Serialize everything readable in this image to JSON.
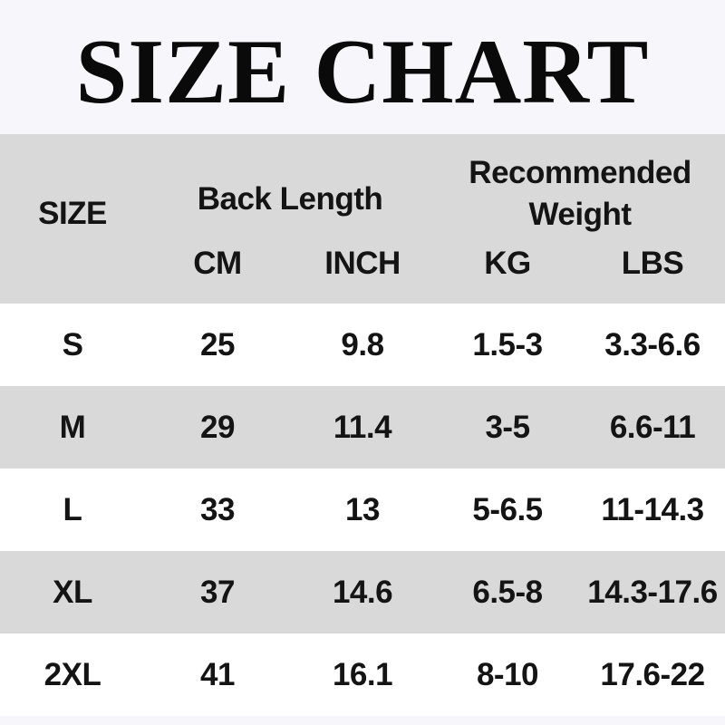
{
  "title": "SIZE CHART",
  "colors": {
    "page_background": "#f6f6fb",
    "header_band": "#d9d9d9",
    "row_stripe": "#d9d9d9",
    "row_plain": "#ffffff",
    "text": "#141414",
    "title_text": "#0a0a0a"
  },
  "header": {
    "size_label": "SIZE",
    "back_length_label": "Back Length",
    "recommended_weight_label": "Recommended Weight",
    "subcolumns": [
      "CM",
      "INCH",
      "KG",
      "LBS"
    ]
  },
  "chart_data": {
    "type": "table",
    "title": "SIZE CHART",
    "column_groups": [
      {
        "label": "",
        "columns": [
          "SIZE"
        ]
      },
      {
        "label": "Back Length",
        "columns": [
          "CM",
          "INCH"
        ]
      },
      {
        "label": "Recommended Weight",
        "columns": [
          "KG",
          "LBS"
        ]
      }
    ],
    "columns": [
      "SIZE",
      "CM",
      "INCH",
      "KG",
      "LBS"
    ],
    "rows": [
      [
        "S",
        "25",
        "9.8",
        "1.5-3",
        "3.3-6.6"
      ],
      [
        "M",
        "29",
        "11.4",
        "3-5",
        "6.6-11"
      ],
      [
        "L",
        "33",
        "13",
        "5-6.5",
        "11-14.3"
      ],
      [
        "XL",
        "37",
        "14.6",
        "6.5-8",
        "14.3-17.6"
      ],
      [
        "2XL",
        "41",
        "16.1",
        "8-10",
        "17.6-22"
      ]
    ]
  }
}
